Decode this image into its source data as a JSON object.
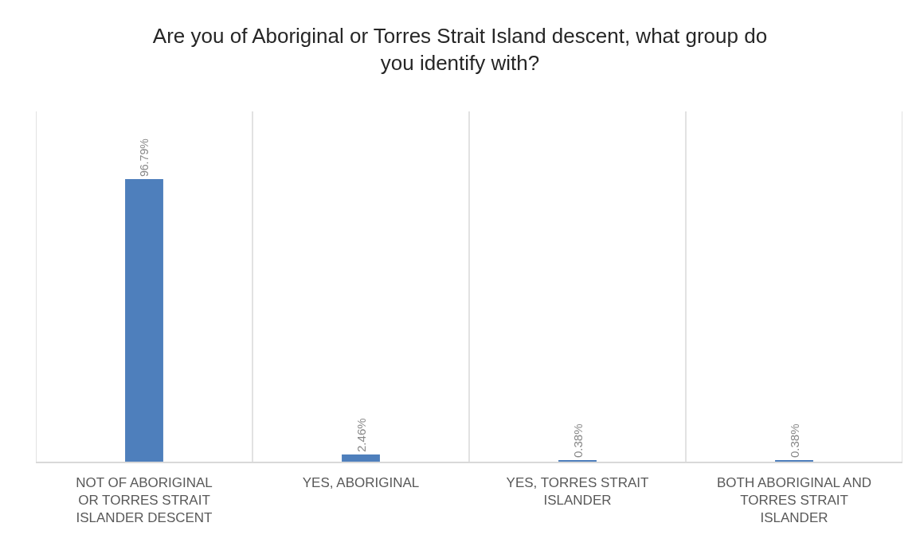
{
  "chart_data": {
    "type": "bar",
    "title": "Are you of Aboriginal or Torres Strait Island descent, what group do you identify with?",
    "categories": [
      "NOT OF ABORIGINAL OR TORRES STRAIT ISLANDER DESCENT",
      "YES, ABORIGINAL",
      "YES, TORRES STRAIT ISLANDER",
      "BOTH ABORIGINAL AND TORRES STRAIT ISLANDER"
    ],
    "values": [
      96.79,
      2.46,
      0.38,
      0.38
    ],
    "value_labels": [
      "96.79%",
      "2.46%",
      "0.38%",
      "0.38%"
    ],
    "color": "#4e7fbc",
    "ylim": [
      0,
      120
    ],
    "tick_labels": "x",
    "grid": "x"
  }
}
